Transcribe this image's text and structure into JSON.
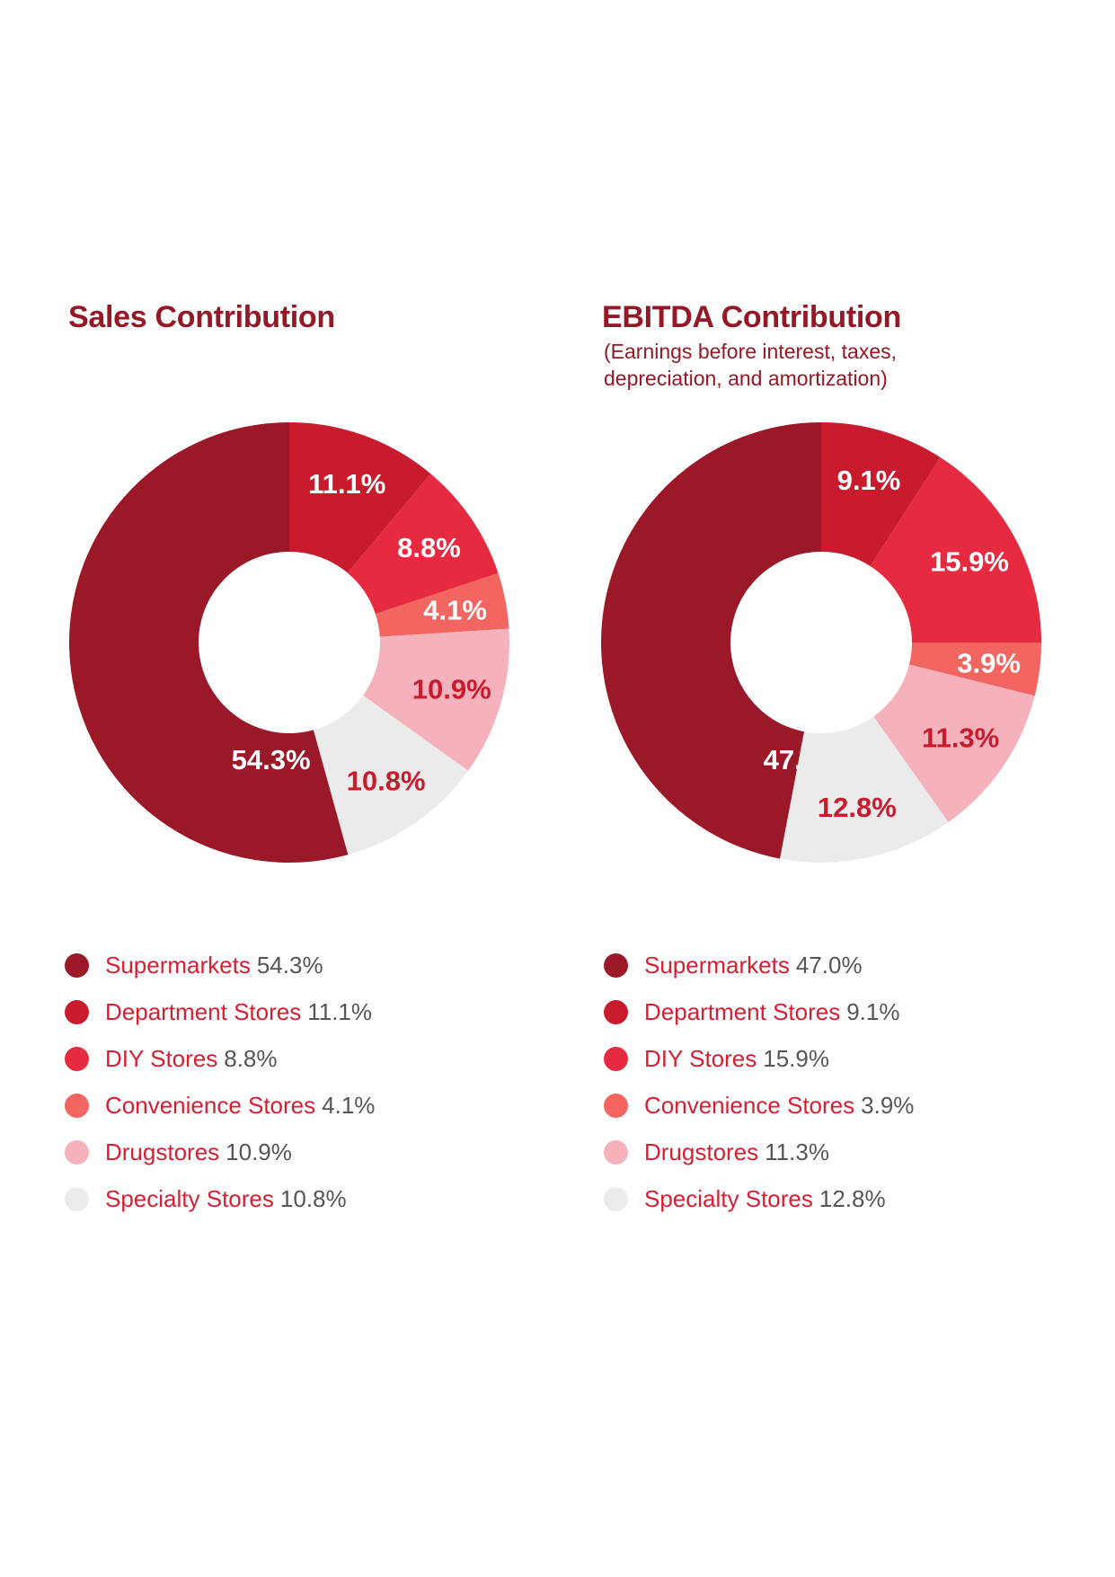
{
  "chart_data": [
    {
      "type": "pie",
      "title": "Sales Contribution",
      "subtitle_lines": [],
      "categories": [
        "Supermarkets",
        "Department Stores",
        "DIY Stores",
        "Convenience Stores",
        "Drugstores",
        "Specialty Stores"
      ],
      "values": [
        54.3,
        11.1,
        8.8,
        4.1,
        10.9,
        10.8
      ],
      "value_labels": [
        "54.3%",
        "11.1%",
        "8.8%",
        "4.1%",
        "10.9%",
        "10.8%"
      ],
      "colors": [
        "#9a1828",
        "#c81c2e",
        "#e62b40",
        "#f26560",
        "#f5b2bc",
        "#ebebeb"
      ],
      "label_colors": [
        "#ffffff",
        "#ffffff",
        "#ffffff",
        "#ffffff",
        "#c81c2e",
        "#c81c2e"
      ],
      "donut": true,
      "legend_position": "bottom"
    },
    {
      "type": "pie",
      "title": "EBITDA Contribution",
      "subtitle_lines": [
        "(Earnings before interest, taxes,",
        "depreciation, and amortization)"
      ],
      "categories": [
        "Supermarkets",
        "Department Stores",
        "DIY Stores",
        "Convenience Stores",
        "Drugstores",
        "Specialty Stores"
      ],
      "values": [
        47.0,
        9.1,
        15.9,
        3.9,
        11.3,
        12.8
      ],
      "value_labels": [
        "47.0%",
        "9.1%",
        "15.9%",
        "3.9%",
        "11.3%",
        "12.8%"
      ],
      "colors": [
        "#9a1828",
        "#c81c2e",
        "#e62b40",
        "#f26560",
        "#f5b2bc",
        "#ebebeb"
      ],
      "label_colors": [
        "#ffffff",
        "#ffffff",
        "#ffffff",
        "#ffffff",
        "#c81c2e",
        "#c81c2e"
      ],
      "donut": true,
      "legend_position": "bottom"
    }
  ],
  "colors": {
    "title": "#941826",
    "legend_label": "#d71f33",
    "legend_value": "#555558",
    "background": "#ffffff"
  }
}
